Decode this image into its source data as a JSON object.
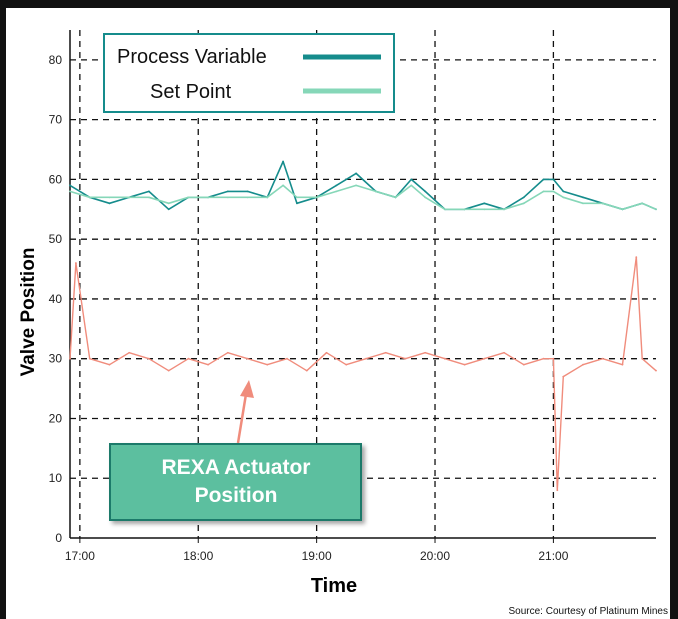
{
  "chart_data": {
    "type": "line",
    "xlabel": "Time",
    "ylabel": "Valve Position",
    "source": "Source: Courtesy of Platinum Mines",
    "ylim": [
      0,
      85
    ],
    "xlim": [
      "16:55",
      "21:52"
    ],
    "y_ticks": [
      "0",
      "10",
      "20",
      "30",
      "40",
      "50",
      "60",
      "70",
      "80"
    ],
    "x_ticks": [
      "17:00",
      "18:00",
      "19:00",
      "20:00",
      "21:00"
    ],
    "grid": true,
    "legend_position": "top-left",
    "callout": {
      "line1": "REXA Actuator",
      "line2": "Position",
      "fill": "#5bbf9f",
      "border": "#1a7a6a"
    },
    "colors": {
      "process_variable": "#158c8c",
      "set_point": "#86d7b8",
      "rexa_actuator_position": "#f08c7c"
    },
    "series": [
      {
        "name": "Process Variable",
        "x": [
          "16:55",
          "17:05",
          "17:15",
          "17:25",
          "17:35",
          "17:45",
          "17:55",
          "18:05",
          "18:15",
          "18:25",
          "18:35",
          "18:43",
          "18:50",
          "19:00",
          "19:10",
          "19:20",
          "19:30",
          "19:40",
          "19:48",
          "19:55",
          "20:05",
          "20:15",
          "20:25",
          "20:35",
          "20:45",
          "20:55",
          "21:00",
          "21:05",
          "21:15",
          "21:25",
          "21:35",
          "21:45",
          "21:52"
        ],
        "y": [
          59,
          57,
          56,
          57,
          58,
          55,
          57,
          57,
          58,
          58,
          57,
          63,
          56,
          57,
          59,
          61,
          58,
          57,
          60,
          58,
          55,
          55,
          56,
          55,
          57,
          60,
          60,
          58,
          57,
          56,
          55,
          56,
          55
        ]
      },
      {
        "name": "Set Point",
        "x": [
          "16:55",
          "17:05",
          "17:15",
          "17:25",
          "17:35",
          "17:45",
          "17:55",
          "18:05",
          "18:15",
          "18:25",
          "18:35",
          "18:43",
          "18:50",
          "19:00",
          "19:10",
          "19:20",
          "19:30",
          "19:40",
          "19:48",
          "19:55",
          "20:05",
          "20:15",
          "20:25",
          "20:35",
          "20:45",
          "20:55",
          "21:00",
          "21:05",
          "21:15",
          "21:25",
          "21:35",
          "21:45",
          "21:52"
        ],
        "y": [
          58,
          57,
          57,
          57,
          57,
          56,
          57,
          57,
          57,
          57,
          57,
          59,
          57,
          57,
          58,
          59,
          58,
          57,
          59,
          57,
          55,
          55,
          55,
          55,
          56,
          58,
          58,
          57,
          56,
          56,
          55,
          56,
          55
        ]
      },
      {
        "name": "REXA Actuator Position",
        "x": [
          "16:55",
          "16:58",
          "17:05",
          "17:15",
          "17:25",
          "17:35",
          "17:45",
          "17:55",
          "18:05",
          "18:15",
          "18:25",
          "18:35",
          "18:45",
          "18:55",
          "19:05",
          "19:15",
          "19:25",
          "19:35",
          "19:45",
          "19:55",
          "20:05",
          "20:15",
          "20:25",
          "20:35",
          "20:45",
          "20:55",
          "21:00",
          "21:02",
          "21:05",
          "21:15",
          "21:25",
          "21:35",
          "21:42",
          "21:45",
          "21:52"
        ],
        "y": [
          30,
          46,
          30,
          29,
          31,
          30,
          28,
          30,
          29,
          31,
          30,
          29,
          30,
          28,
          31,
          29,
          30,
          31,
          30,
          31,
          30,
          29,
          30,
          31,
          29,
          30,
          30,
          8,
          27,
          29,
          30,
          29,
          47,
          30,
          28
        ]
      }
    ]
  }
}
